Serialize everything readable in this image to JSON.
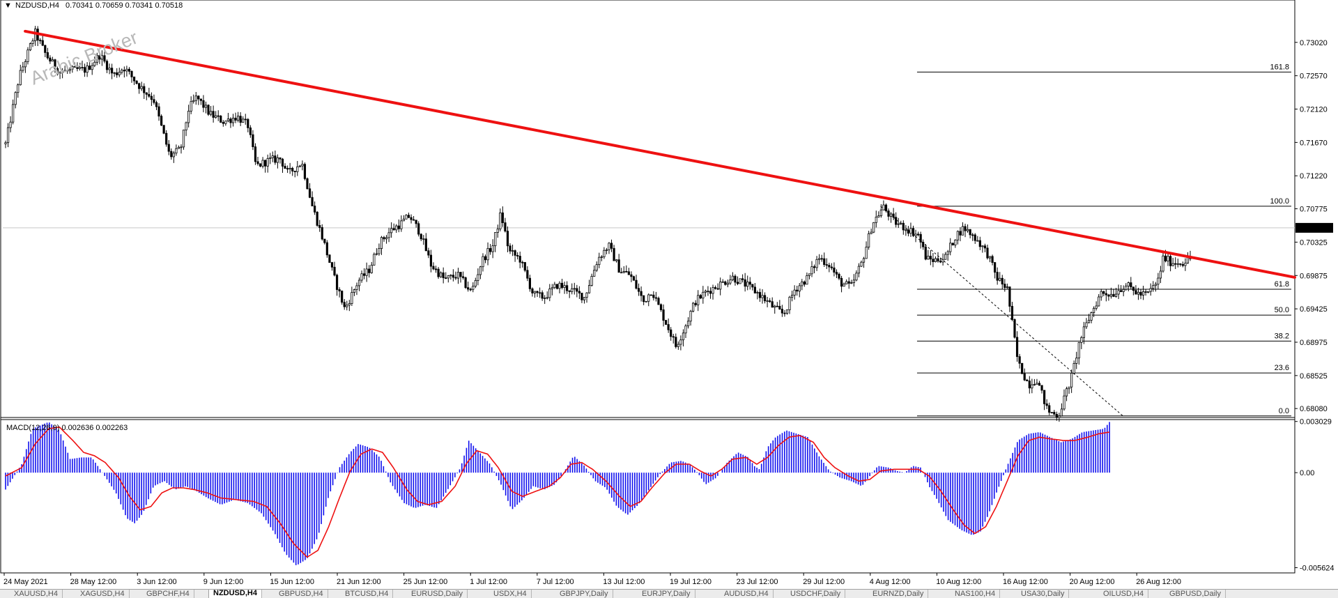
{
  "header": {
    "symbol": "NZDUSD,H4",
    "ohlc": "0.70341 0.70659 0.70341 0.70518"
  },
  "watermark": "Arabic Broker",
  "colors": {
    "trendline": "#ee1111",
    "histogram": "#1010ee",
    "signal": "#ee1111",
    "price_badge_bg": "#000000"
  },
  "chart_data": {
    "type": "candlestick",
    "price_axis": {
      "ticks": [
        "0.73020",
        "0.72570",
        "0.72120",
        "0.71670",
        "0.71220",
        "0.70775",
        "0.70325",
        "0.69875",
        "0.69425",
        "0.68975",
        "0.68525",
        "0.68080"
      ],
      "range": [
        0.6795,
        0.7346
      ],
      "current_price": "0.70518",
      "current_value": 0.70518
    },
    "time_axis": {
      "labels": [
        "24 May 2021",
        "28 May 12:00",
        "3 Jun 12:00",
        "9 Jun 12:00",
        "15 Jun 12:00",
        "21 Jun 12:00",
        "25 Jun 12:00",
        "1 Jul 12:00",
        "7 Jul 12:00",
        "13 Jul 12:00",
        "19 Jul 12:00",
        "23 Jul 12:00",
        "29 Jul 12:00",
        "4 Aug 12:00",
        "10 Aug 12:00",
        "16 Aug 12:00",
        "20 Aug 12:00",
        "26 Aug 12:00"
      ]
    },
    "bars": 480,
    "path": [
      [
        0,
        0.7165
      ],
      [
        10,
        0.7255
      ],
      [
        22,
        0.7315
      ],
      [
        30,
        0.7285
      ],
      [
        40,
        0.7262
      ],
      [
        52,
        0.7265
      ],
      [
        60,
        0.7265
      ],
      [
        70,
        0.7285
      ],
      [
        80,
        0.7258
      ],
      [
        88,
        0.7268
      ],
      [
        100,
        0.7242
      ],
      [
        110,
        0.7225
      ],
      [
        122,
        0.7148
      ],
      [
        130,
        0.7158
      ],
      [
        136,
        0.7212
      ],
      [
        142,
        0.7228
      ],
      [
        152,
        0.7205
      ],
      [
        162,
        0.7195
      ],
      [
        172,
        0.7202
      ],
      [
        180,
        0.719
      ],
      [
        186,
        0.7135
      ],
      [
        196,
        0.7143
      ],
      [
        204,
        0.7145
      ],
      [
        210,
        0.7125
      ],
      [
        220,
        0.714
      ],
      [
        228,
        0.708
      ],
      [
        236,
        0.7035
      ],
      [
        244,
        0.6985
      ],
      [
        252,
        0.6942
      ],
      [
        262,
        0.698
      ],
      [
        270,
        0.6995
      ],
      [
        278,
        0.7032
      ],
      [
        286,
        0.7048
      ],
      [
        294,
        0.7058
      ],
      [
        300,
        0.7068
      ],
      [
        308,
        0.7045
      ],
      [
        316,
        0.7002
      ],
      [
        326,
        0.6982
      ],
      [
        336,
        0.6988
      ],
      [
        346,
        0.6965
      ],
      [
        354,
        0.7008
      ],
      [
        362,
        0.7028
      ],
      [
        368,
        0.7072
      ],
      [
        374,
        0.702
      ],
      [
        382,
        0.701
      ],
      [
        392,
        0.6962
      ],
      [
        400,
        0.6958
      ],
      [
        410,
        0.6975
      ],
      [
        420,
        0.6968
      ],
      [
        430,
        0.6958
      ],
      [
        440,
        0.701
      ],
      [
        448,
        0.7028
      ],
      [
        456,
        0.6995
      ],
      [
        464,
        0.6988
      ],
      [
        474,
        0.6952
      ],
      [
        480,
        0.6968
      ],
      [
        486,
        0.6942
      ],
      [
        492,
        0.6918
      ],
      [
        498,
        0.6892
      ],
      [
        504,
        0.6915
      ],
      [
        512,
        0.6952
      ],
      [
        520,
        0.6965
      ],
      [
        530,
        0.6975
      ],
      [
        540,
        0.6985
      ],
      [
        550,
        0.6975
      ],
      [
        560,
        0.6962
      ],
      [
        570,
        0.6945
      ],
      [
        578,
        0.6935
      ],
      [
        586,
        0.6968
      ],
      [
        596,
        0.6985
      ],
      [
        604,
        0.7012
      ],
      [
        612,
        0.7002
      ],
      [
        620,
        0.6978
      ],
      [
        628,
        0.6972
      ],
      [
        636,
        0.7005
      ],
      [
        644,
        0.7058
      ],
      [
        652,
        0.708
      ],
      [
        660,
        0.706
      ],
      [
        668,
        0.7052
      ],
      [
        678,
        0.7042
      ],
      [
        684,
        0.701
      ],
      [
        690,
        0.7008
      ],
      [
        698,
        0.7012
      ],
      [
        706,
        0.7042
      ],
      [
        712,
        0.7052
      ],
      [
        722,
        0.7035
      ],
      [
        730,
        0.7015
      ],
      [
        736,
        0.6985
      ],
      [
        744,
        0.697
      ],
      [
        752,
        0.687
      ],
      [
        760,
        0.684
      ],
      [
        766,
        0.6848
      ],
      [
        774,
        0.6805
      ],
      [
        782,
        0.6798
      ],
      [
        792,
        0.6852
      ],
      [
        798,
        0.69
      ],
      [
        806,
        0.6935
      ],
      [
        814,
        0.6965
      ],
      [
        822,
        0.6962
      ],
      [
        832,
        0.6975
      ],
      [
        842,
        0.6962
      ],
      [
        848,
        0.6962
      ],
      [
        856,
        0.698
      ],
      [
        860,
        0.7012
      ],
      [
        866,
        0.7005
      ],
      [
        874,
        0.7005
      ],
      [
        880,
        0.701
      ]
    ],
    "macd": {
      "label": "MACD(12,26,9) 0.002636 0.002263",
      "ticks": [
        "0.003029",
        "0.00",
        "-0.005624"
      ],
      "range": [
        -0.00585,
        0.0031
      ],
      "hist": [
        [
          0,
          -0.001
        ],
        [
          12,
          0.0005
        ],
        [
          20,
          0.0026
        ],
        [
          32,
          0.003
        ],
        [
          40,
          0.0025
        ],
        [
          48,
          0.0008
        ],
        [
          56,
          0.0009
        ],
        [
          64,
          0.0009
        ],
        [
          72,
          0.0
        ],
        [
          82,
          -0.0012
        ],
        [
          90,
          -0.0027
        ],
        [
          96,
          -0.003
        ],
        [
          102,
          -0.0024
        ],
        [
          110,
          -0.0008
        ],
        [
          118,
          -0.0005
        ],
        [
          126,
          -0.001
        ],
        [
          134,
          -0.0008
        ],
        [
          142,
          -0.0011
        ],
        [
          150,
          -0.0015
        ],
        [
          160,
          -0.0019
        ],
        [
          170,
          -0.0016
        ],
        [
          180,
          -0.0018
        ],
        [
          190,
          -0.0024
        ],
        [
          200,
          -0.0036
        ],
        [
          208,
          -0.0048
        ],
        [
          216,
          -0.0055
        ],
        [
          224,
          -0.0051
        ],
        [
          232,
          -0.0038
        ],
        [
          240,
          -0.0014
        ],
        [
          248,
          0.0003
        ],
        [
          256,
          0.0012
        ],
        [
          262,
          0.0017
        ],
        [
          270,
          0.0015
        ],
        [
          278,
          0.0009
        ],
        [
          286,
          -0.0006
        ],
        [
          296,
          -0.0018
        ],
        [
          304,
          -0.0021
        ],
        [
          312,
          -0.0019
        ],
        [
          320,
          -0.0021
        ],
        [
          330,
          -0.0008
        ],
        [
          338,
          0.0003
        ],
        [
          344,
          0.0019
        ],
        [
          352,
          0.0012
        ],
        [
          360,
          0.0005
        ],
        [
          368,
          -0.0007
        ],
        [
          376,
          -0.0022
        ],
        [
          384,
          -0.0016
        ],
        [
          392,
          -0.0008
        ],
        [
          400,
          -0.001
        ],
        [
          408,
          -0.0007
        ],
        [
          416,
          0.0002
        ],
        [
          422,
          0.001
        ],
        [
          430,
          0.0004
        ],
        [
          438,
          -0.0005
        ],
        [
          446,
          -0.0009
        ],
        [
          454,
          -0.002
        ],
        [
          462,
          -0.0025
        ],
        [
          470,
          -0.0019
        ],
        [
          478,
          -0.001
        ],
        [
          486,
          -0.0001
        ],
        [
          494,
          0.0006
        ],
        [
          502,
          0.0007
        ],
        [
          508,
          0.0005
        ],
        [
          514,
          0.0
        ],
        [
          520,
          -0.0007
        ],
        [
          528,
          -0.0003
        ],
        [
          536,
          0.0006
        ],
        [
          544,
          0.0012
        ],
        [
          552,
          0.0009
        ],
        [
          556,
          0.0004
        ],
        [
          560,
          0.0002
        ],
        [
          566,
          0.0015
        ],
        [
          572,
          0.0021
        ],
        [
          580,
          0.0025
        ],
        [
          588,
          0.0023
        ],
        [
          596,
          0.0021
        ],
        [
          604,
          0.001
        ],
        [
          612,
          0.0001
        ],
        [
          620,
          -0.0003
        ],
        [
          628,
          -0.0005
        ],
        [
          636,
          -0.0008
        ],
        [
          642,
          -0.0002
        ],
        [
          648,
          0.0004
        ],
        [
          656,
          0.0003
        ],
        [
          662,
          0.0001
        ],
        [
          668,
          0.0
        ],
        [
          674,
          0.0004
        ],
        [
          680,
          0.0003
        ],
        [
          686,
          -0.0008
        ],
        [
          692,
          -0.0016
        ],
        [
          700,
          -0.0028
        ],
        [
          710,
          -0.0034
        ],
        [
          718,
          -0.0037
        ],
        [
          724,
          -0.0035
        ],
        [
          730,
          -0.0025
        ],
        [
          736,
          -0.0012
        ],
        [
          744,
          0.0004
        ],
        [
          752,
          0.0019
        ],
        [
          760,
          0.0023
        ],
        [
          768,
          0.0024
        ],
        [
          776,
          0.0021
        ],
        [
          784,
          0.0018
        ],
        [
          792,
          0.002
        ],
        [
          800,
          0.0024
        ],
        [
          808,
          0.0025
        ],
        [
          816,
          0.0026
        ],
        [
          820,
          0.003
        ]
      ],
      "signal": [
        [
          0,
          -0.0002
        ],
        [
          12,
          0.0003
        ],
        [
          22,
          0.0017
        ],
        [
          32,
          0.0026
        ],
        [
          40,
          0.0027
        ],
        [
          50,
          0.0019
        ],
        [
          58,
          0.0012
        ],
        [
          66,
          0.001
        ],
        [
          74,
          0.0006
        ],
        [
          84,
          -0.0003
        ],
        [
          92,
          -0.0014
        ],
        [
          100,
          -0.0022
        ],
        [
          108,
          -0.002
        ],
        [
          116,
          -0.0012
        ],
        [
          124,
          -0.0009
        ],
        [
          132,
          -0.0009
        ],
        [
          140,
          -0.001
        ],
        [
          150,
          -0.0012
        ],
        [
          160,
          -0.0015
        ],
        [
          172,
          -0.0016
        ],
        [
          184,
          -0.0017
        ],
        [
          194,
          -0.002
        ],
        [
          204,
          -0.003
        ],
        [
          214,
          -0.0042
        ],
        [
          224,
          -0.005
        ],
        [
          232,
          -0.0046
        ],
        [
          240,
          -0.0032
        ],
        [
          248,
          -0.0015
        ],
        [
          256,
          0.0001
        ],
        [
          264,
          0.0011
        ],
        [
          272,
          0.0014
        ],
        [
          280,
          0.0012
        ],
        [
          288,
          0.0003
        ],
        [
          298,
          -0.001
        ],
        [
          306,
          -0.0017
        ],
        [
          314,
          -0.0019
        ],
        [
          324,
          -0.0017
        ],
        [
          334,
          -0.0008
        ],
        [
          342,
          0.0005
        ],
        [
          350,
          0.0013
        ],
        [
          358,
          0.0011
        ],
        [
          366,
          0.0003
        ],
        [
          376,
          -0.0011
        ],
        [
          384,
          -0.0014
        ],
        [
          394,
          -0.0011
        ],
        [
          404,
          -0.0008
        ],
        [
          412,
          -0.0003
        ],
        [
          420,
          0.0005
        ],
        [
          428,
          0.0006
        ],
        [
          436,
          0.0002
        ],
        [
          446,
          -0.0005
        ],
        [
          456,
          -0.0014
        ],
        [
          464,
          -0.002
        ],
        [
          472,
          -0.0017
        ],
        [
          480,
          -0.0009
        ],
        [
          490,
          0.0
        ],
        [
          498,
          0.0005
        ],
        [
          508,
          0.0005
        ],
        [
          516,
          0.0001
        ],
        [
          524,
          -0.0002
        ],
        [
          532,
          0.0002
        ],
        [
          540,
          0.0008
        ],
        [
          550,
          0.0009
        ],
        [
          558,
          0.0005
        ],
        [
          566,
          0.0009
        ],
        [
          574,
          0.0016
        ],
        [
          582,
          0.0021
        ],
        [
          590,
          0.0022
        ],
        [
          600,
          0.0018
        ],
        [
          608,
          0.0009
        ],
        [
          616,
          0.0003
        ],
        [
          626,
          -0.0002
        ],
        [
          634,
          -0.0005
        ],
        [
          642,
          -0.0004
        ],
        [
          650,
          0.0001
        ],
        [
          660,
          0.0002
        ],
        [
          670,
          0.0002
        ],
        [
          678,
          0.0002
        ],
        [
          686,
          -0.0002
        ],
        [
          694,
          -0.001
        ],
        [
          704,
          -0.0022
        ],
        [
          712,
          -0.0031
        ],
        [
          720,
          -0.0036
        ],
        [
          728,
          -0.0032
        ],
        [
          736,
          -0.002
        ],
        [
          744,
          -0.0005
        ],
        [
          752,
          0.001
        ],
        [
          760,
          0.0019
        ],
        [
          768,
          0.0021
        ],
        [
          776,
          0.002
        ],
        [
          786,
          0.0019
        ],
        [
          794,
          0.0019
        ],
        [
          804,
          0.0021
        ],
        [
          812,
          0.0023
        ],
        [
          820,
          0.0024
        ]
      ]
    },
    "trendline": {
      "from": [
        26,
        0.7317
      ],
      "to": [
        1500,
        0.6985
      ]
    },
    "fibonacci": {
      "levels": [
        {
          "label": "161.8",
          "value": 0.7262
        },
        {
          "label": "100.0",
          "value": 0.7081
        },
        {
          "label": "61.8",
          "value": 0.6969
        },
        {
          "label": "50.0",
          "value": 0.6934
        },
        {
          "label": "38.2",
          "value": 0.6899
        },
        {
          "label": "23.6",
          "value": 0.6856
        },
        {
          "label": "0.0",
          "value": 0.6798
        }
      ],
      "x_start": 646,
      "x_end": 970,
      "diagonal": {
        "from": [
          650,
          0.7081
        ],
        "to": [
          830,
          0.6798
        ]
      }
    }
  },
  "tabs": [
    "XAUUSD,H4",
    "XAGUSD,H4",
    "GBPCHF,H4",
    "NZDUSD,H4",
    "GBPUSD,H4",
    "BTCUSD,H4",
    "EURUSD,Daily",
    "USDX,H4",
    "GBPJPY,Daily",
    "EURJPY,Daily",
    "AUDUSD,H4",
    "USDCHF,Daily",
    "EURNZD,Daily",
    "NAS100,H4",
    "USA30,Daily",
    "OILUSD,H4",
    "GBPUSD,Daily"
  ],
  "active_tab": 3
}
